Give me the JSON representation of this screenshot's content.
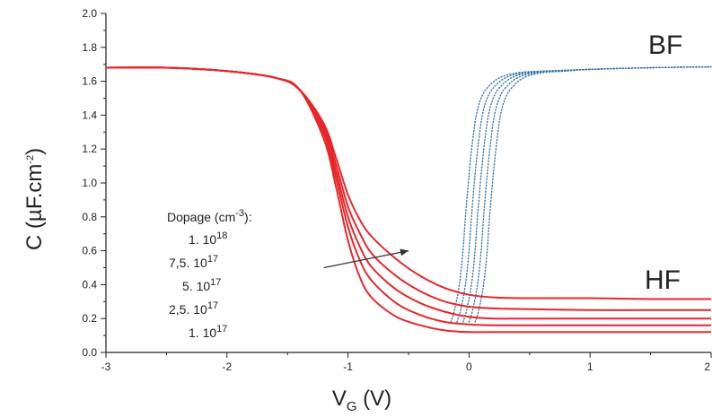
{
  "chart_data": {
    "type": "line",
    "xlabel": {
      "main": "V",
      "sub": "G",
      "rest": " (V)"
    },
    "ylabel": {
      "main": "C (µF.cm",
      "sup": "-2",
      "rest": ")"
    },
    "xlim": [
      -3,
      2
    ],
    "ylim": [
      0,
      2.0
    ],
    "x_ticks": [
      -3,
      -2,
      -1,
      0,
      1,
      2
    ],
    "x_tick_labels": [
      "-3",
      "-2",
      "-1",
      "0",
      "1",
      "2"
    ],
    "y_ticks": [
      0,
      0.2,
      0.4,
      0.6,
      0.8,
      1.0,
      1.2,
      1.4,
      1.6,
      1.8,
      2.0
    ],
    "y_tick_labels": [
      "0.0",
      "0.2",
      "0.4",
      "0.6",
      "0.8",
      "1.0",
      "1.2",
      "1.4",
      "1.6",
      "1.8",
      "2.0"
    ],
    "annotations": {
      "bf": "BF",
      "hf": "HF"
    },
    "legend": {
      "title": {
        "main": "Dopage (cm",
        "sup": "-3",
        "rest": "):"
      },
      "entries": [
        {
          "main": "1. 10",
          "sup": "18"
        },
        {
          "main": "7,5. 10",
          "sup": "17"
        },
        {
          "main": "5. 10",
          "sup": "17"
        },
        {
          "main": "2,5. 10",
          "sup": "17"
        },
        {
          "main": "1. 10",
          "sup": "17"
        }
      ]
    },
    "colors": {
      "hf": "#e8262a",
      "bf": "#2e6fa8",
      "axis": "#222222"
    },
    "hf_series": [
      {
        "x": [
          -3.0,
          -2.5,
          -2.0,
          -1.6,
          -1.4,
          -1.2,
          -1.1,
          -1.0,
          -0.9,
          -0.8,
          -0.6,
          -0.4,
          -0.2,
          0.0,
          0.2,
          0.5,
          1.0,
          1.5,
          2.0
        ],
        "y": [
          1.68,
          1.68,
          1.66,
          1.62,
          1.55,
          1.35,
          1.15,
          0.93,
          0.78,
          0.68,
          0.55,
          0.45,
          0.38,
          0.34,
          0.325,
          0.32,
          0.32,
          0.315,
          0.315
        ]
      },
      {
        "x": [
          -3.0,
          -2.5,
          -2.0,
          -1.6,
          -1.4,
          -1.2,
          -1.1,
          -1.0,
          -0.9,
          -0.8,
          -0.6,
          -0.4,
          -0.2,
          0.0,
          0.2,
          0.5,
          1.0,
          1.5,
          2.0
        ],
        "y": [
          1.68,
          1.68,
          1.66,
          1.62,
          1.55,
          1.33,
          1.11,
          0.86,
          0.7,
          0.58,
          0.45,
          0.36,
          0.3,
          0.27,
          0.26,
          0.255,
          0.25,
          0.25,
          0.25
        ]
      },
      {
        "x": [
          -3.0,
          -2.5,
          -2.0,
          -1.6,
          -1.4,
          -1.2,
          -1.1,
          -1.0,
          -0.9,
          -0.8,
          -0.6,
          -0.4,
          -0.2,
          0.0,
          0.2,
          0.5,
          1.0,
          1.5,
          2.0
        ],
        "y": [
          1.68,
          1.68,
          1.66,
          1.62,
          1.55,
          1.31,
          1.07,
          0.8,
          0.62,
          0.5,
          0.37,
          0.29,
          0.24,
          0.21,
          0.2,
          0.2,
          0.2,
          0.2,
          0.2
        ]
      },
      {
        "x": [
          -3.0,
          -2.5,
          -2.0,
          -1.6,
          -1.4,
          -1.2,
          -1.1,
          -1.0,
          -0.9,
          -0.8,
          -0.6,
          -0.4,
          -0.2,
          0.0,
          0.2,
          0.5,
          1.0,
          1.5,
          2.0
        ],
        "y": [
          1.68,
          1.68,
          1.66,
          1.62,
          1.55,
          1.29,
          1.03,
          0.74,
          0.54,
          0.42,
          0.29,
          0.22,
          0.18,
          0.165,
          0.16,
          0.16,
          0.16,
          0.16,
          0.16
        ]
      },
      {
        "x": [
          -3.0,
          -2.5,
          -2.0,
          -1.6,
          -1.4,
          -1.2,
          -1.1,
          -1.0,
          -0.9,
          -0.8,
          -0.6,
          -0.4,
          -0.2,
          0.0,
          0.2,
          0.5,
          1.0,
          1.5,
          2.0
        ],
        "y": [
          1.68,
          1.68,
          1.66,
          1.62,
          1.55,
          1.26,
          0.98,
          0.66,
          0.44,
          0.32,
          0.21,
          0.16,
          0.13,
          0.12,
          0.12,
          0.12,
          0.12,
          0.12,
          0.12
        ]
      }
    ],
    "bf_series": [
      {
        "x": [
          -0.15,
          -0.12,
          -0.08,
          -0.05,
          -0.03,
          0.0,
          0.03,
          0.06,
          0.1,
          0.15,
          0.25,
          0.4,
          0.6,
          1.0,
          1.5,
          2.0
        ],
        "y": [
          0.18,
          0.25,
          0.4,
          0.6,
          0.8,
          1.05,
          1.25,
          1.4,
          1.5,
          1.56,
          1.62,
          1.65,
          1.66,
          1.67,
          1.68,
          1.685
        ]
      },
      {
        "x": [
          -0.1,
          -0.07,
          -0.03,
          0.0,
          0.02,
          0.05,
          0.08,
          0.11,
          0.15,
          0.2,
          0.3,
          0.45,
          0.65,
          1.0,
          1.5,
          2.0
        ],
        "y": [
          0.18,
          0.25,
          0.4,
          0.6,
          0.8,
          1.05,
          1.25,
          1.4,
          1.5,
          1.56,
          1.62,
          1.65,
          1.66,
          1.67,
          1.68,
          1.685
        ]
      },
      {
        "x": [
          -0.05,
          -0.02,
          0.02,
          0.05,
          0.07,
          0.1,
          0.13,
          0.16,
          0.2,
          0.25,
          0.35,
          0.5,
          0.7,
          1.0,
          1.5,
          2.0
        ],
        "y": [
          0.18,
          0.25,
          0.4,
          0.6,
          0.8,
          1.05,
          1.25,
          1.4,
          1.5,
          1.56,
          1.62,
          1.65,
          1.66,
          1.67,
          1.68,
          1.685
        ]
      },
      {
        "x": [
          0.0,
          0.03,
          0.07,
          0.1,
          0.12,
          0.15,
          0.18,
          0.21,
          0.25,
          0.3,
          0.4,
          0.55,
          0.75,
          1.0,
          1.5,
          2.0
        ],
        "y": [
          0.18,
          0.25,
          0.4,
          0.6,
          0.8,
          1.05,
          1.25,
          1.4,
          1.5,
          1.56,
          1.62,
          1.65,
          1.66,
          1.67,
          1.68,
          1.685
        ]
      },
      {
        "x": [
          0.05,
          0.08,
          0.12,
          0.15,
          0.17,
          0.2,
          0.23,
          0.26,
          0.3,
          0.35,
          0.45,
          0.6,
          0.8,
          1.0,
          1.5,
          2.0
        ],
        "y": [
          0.18,
          0.25,
          0.4,
          0.6,
          0.8,
          1.05,
          1.25,
          1.4,
          1.5,
          1.56,
          1.62,
          1.65,
          1.66,
          1.67,
          1.68,
          1.685
        ]
      }
    ],
    "arrow": {
      "from": [
        -1.2,
        0.5
      ],
      "to": [
        -0.5,
        0.6
      ]
    }
  }
}
